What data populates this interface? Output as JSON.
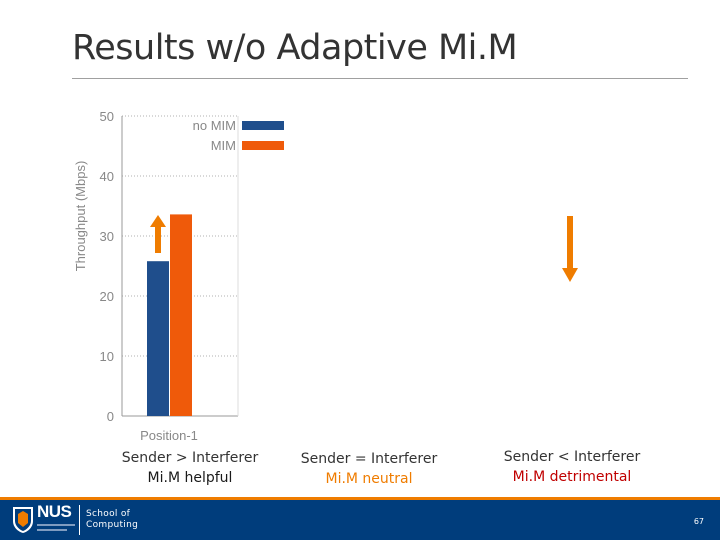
{
  "slide": {
    "title": "Results w/o Adaptive Mi.M",
    "page_number": "67"
  },
  "captions": [
    {
      "line1": "Sender > Interferer",
      "line2": "Mi.M helpful",
      "line2_color": "#1a1a1a"
    },
    {
      "line1": "Sender = Interferer",
      "line2": "Mi.M neutral",
      "line2_color": "#ef7c00"
    },
    {
      "line1": "Sender < Interferer",
      "line2": "Mi.M detrimental",
      "line2_color": "#c00000"
    }
  ],
  "footer": {
    "org": "NUS",
    "school_line1": "School of",
    "school_line2": "Computing"
  },
  "colors": {
    "no_mim": "#1f4e8c",
    "mim": "#ef5a0a",
    "arrow": "#ef7c00",
    "footer": "#003d7c"
  },
  "chart_data": {
    "type": "bar",
    "title": "",
    "ylabel": "Throughput (Mbps)",
    "xlabel": "",
    "categories": [
      "Position-1"
    ],
    "series": [
      {
        "name": "no MIM",
        "values": [
          25.8
        ]
      },
      {
        "name": "MIM",
        "values": [
          33.6
        ]
      }
    ],
    "ylim": [
      0,
      50
    ],
    "yticks": [
      0,
      10,
      20,
      30,
      40,
      50
    ],
    "grid": true,
    "legend": "top-right"
  }
}
